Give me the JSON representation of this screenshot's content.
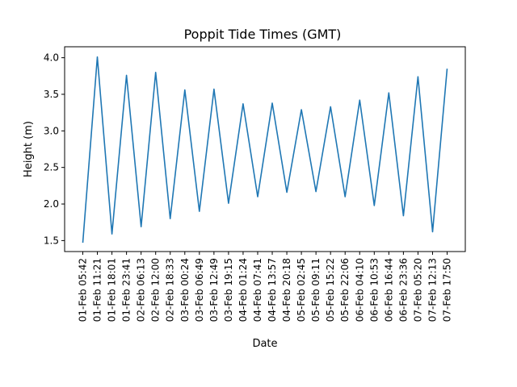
{
  "chart_data": {
    "type": "line",
    "title": "Poppit Tide Times (GMT)",
    "xlabel": "Date",
    "ylabel": "Height (m)",
    "ylim": [
      1.35,
      4.15
    ],
    "yticks": [
      "1.5",
      "2.0",
      "2.5",
      "3.0",
      "3.5",
      "4.0"
    ],
    "grid": false,
    "line_color": "#1f77b4",
    "x": [
      "01-Feb 05:42",
      "01-Feb 11:21",
      "01-Feb 18:01",
      "01-Feb 23:41",
      "02-Feb 06:13",
      "02-Feb 12:00",
      "02-Feb 18:33",
      "03-Feb 00:24",
      "03-Feb 06:49",
      "03-Feb 12:49",
      "03-Feb 19:15",
      "04-Feb 01:24",
      "04-Feb 07:41",
      "04-Feb 13:57",
      "04-Feb 20:18",
      "05-Feb 02:45",
      "05-Feb 09:11",
      "05-Feb 15:22",
      "05-Feb 22:06",
      "06-Feb 04:10",
      "06-Feb 10:53",
      "06-Feb 16:44",
      "06-Feb 23:36",
      "07-Feb 05:20",
      "07-Feb 12:13",
      "07-Feb 17:50"
    ],
    "values": [
      1.47,
      4.01,
      1.59,
      3.76,
      1.69,
      3.8,
      1.8,
      3.56,
      1.9,
      3.57,
      2.01,
      3.37,
      2.1,
      3.38,
      2.16,
      3.29,
      2.17,
      3.33,
      2.1,
      3.42,
      1.98,
      3.52,
      1.84,
      3.74,
      1.62,
      3.85
    ]
  }
}
